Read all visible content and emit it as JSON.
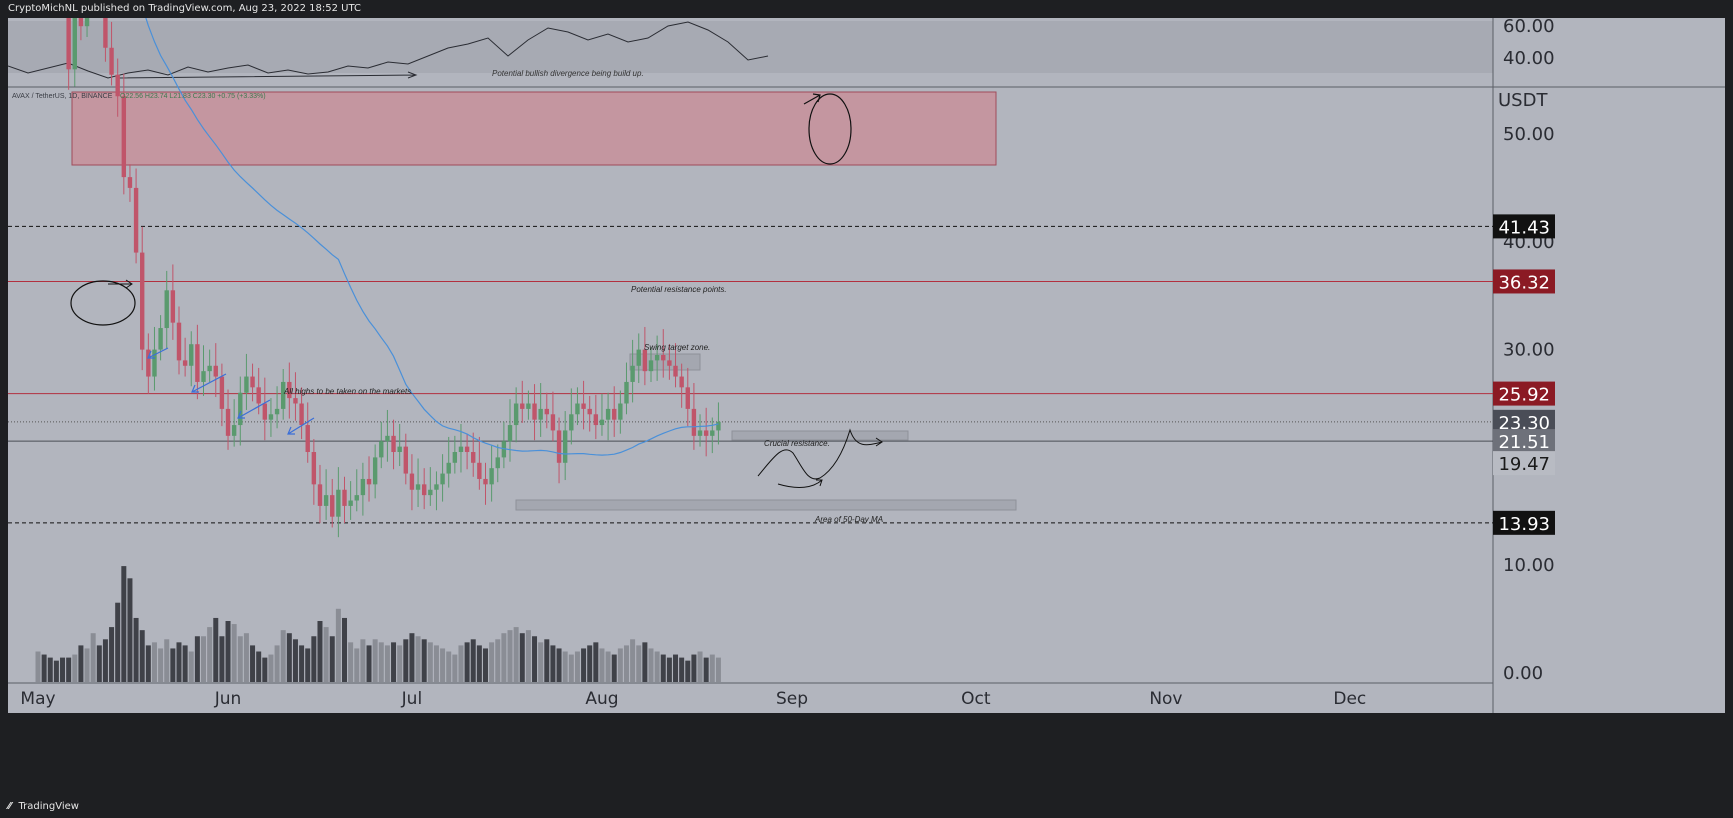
{
  "header": {
    "published_text": "CryptoMichNL published on TradingView.com, Aug 23, 2022 18:52 UTC"
  },
  "footer": {
    "brand": "TradingView",
    "logo_glyph": "⁄⁄"
  },
  "colors": {
    "background": "#b2b5be",
    "up_candle": "#5a9a6e",
    "down_candle": "#c0556a",
    "ma_line": "#4a90d9",
    "resistance_zone": "#c98c96",
    "label_black": "#111111",
    "label_red": "#8b1a24"
  },
  "chart_data": {
    "type": "candlestick",
    "symbol_legend": "AVAX / TetherUS, 1D, BINANCE",
    "ohlc_legend": "O22.56 H23.74 L21.83 C23.30 +0.75 (+3.33%)",
    "currency_label": "USDT",
    "y_ticks": [
      "0.00",
      "10.00",
      "20.00",
      "30.00",
      "40.00",
      "50.00",
      "60.00"
    ],
    "y_tick_values": [
      0,
      10,
      20,
      30,
      40,
      50,
      60
    ],
    "x_ticks": [
      "May",
      "Jun",
      "Jul",
      "Aug",
      "Sep",
      "Oct",
      "Nov",
      "Dec"
    ],
    "x_tick_days": [
      0,
      31,
      61,
      92,
      123,
      153,
      184,
      214
    ],
    "x_first_day": "May 1",
    "price_labels": [
      {
        "text": "41.43",
        "value": 41.43,
        "style": "black",
        "line": "dashed"
      },
      {
        "text": "36.32",
        "value": 36.32,
        "style": "red",
        "line": "solid-red"
      },
      {
        "text": "25.92",
        "value": 25.92,
        "style": "red",
        "line": "solid-red"
      },
      {
        "text": "23.30",
        "value": 23.3,
        "style": "dark",
        "line": "dotted"
      },
      {
        "text": "21.51",
        "value": 21.51,
        "style": "grey",
        "line": "solid-dark"
      },
      {
        "text": "19.47",
        "value": 19.47,
        "style": "light",
        "line": "none"
      },
      {
        "text": "13.93",
        "value": 13.93,
        "style": "black",
        "line": "dashed"
      }
    ],
    "rsi_tick": "40.00",
    "annotations": {
      "divergence": "Potential bullish divergence being build up.",
      "resistance_points": "Potential resistance points.",
      "swing_target": "Swing target zone.",
      "all_highs": "All highs to be taken on the markets.",
      "crucial_resistance": "Crucial resistance.",
      "ma_area": "Area of 50-Day MA"
    },
    "candles_start_day": 0,
    "close": [
      82.0,
      79.5,
      77.0,
      69.0,
      62.0,
      56.0,
      63.0,
      60.0,
      68.0,
      86.0,
      84.0,
      58.0,
      55.5,
      53.5,
      46.0,
      45.0,
      39.0,
      30.0,
      27.5,
      30.0,
      32.0,
      35.5,
      32.5,
      29.0,
      28.5,
      30.5,
      27.0,
      28.0,
      28.5,
      27.5,
      24.5,
      22.0,
      23.0,
      26.0,
      27.5,
      26.5,
      25.0,
      23.5,
      24.0,
      24.5,
      27.0,
      25.5,
      25.0,
      23.0,
      20.5,
      17.5,
      15.5,
      16.5,
      14.5,
      17.0,
      15.5,
      16.0,
      16.5,
      18.0,
      17.5,
      20.0,
      21.5,
      22.0,
      20.5,
      21.0,
      18.5,
      17.0,
      17.5,
      16.5,
      17.0,
      17.5,
      18.5,
      19.5,
      20.5,
      21.0,
      20.5,
      19.5,
      18.0,
      17.5,
      19.0,
      20.0,
      21.5,
      23.0,
      25.0,
      24.5,
      25.0,
      23.5,
      24.5,
      24.0,
      22.5,
      19.5,
      22.5,
      24.0,
      25.0,
      24.5,
      24.0,
      23.0,
      23.5,
      24.5,
      23.5,
      25.0,
      27.0,
      28.5,
      30.0,
      28.0,
      29.0,
      29.5,
      29.0,
      28.5,
      27.5,
      26.5,
      24.5,
      22.0,
      22.5,
      22.0,
      22.5,
      23.3
    ],
    "volume": [
      10,
      9,
      8,
      7,
      8,
      8,
      9,
      12,
      11,
      16,
      12,
      14,
      18,
      26,
      38,
      34,
      21,
      17,
      12,
      13,
      11,
      14,
      11,
      13,
      12,
      10,
      15,
      15,
      18,
      21,
      15,
      20,
      19,
      15,
      16,
      12,
      10,
      8,
      9,
      12,
      17,
      16,
      14,
      12,
      11,
      15,
      20,
      18,
      15,
      24,
      21,
      13,
      11,
      14,
      12,
      14,
      13,
      12,
      13,
      12,
      14,
      16,
      15,
      14,
      13,
      12,
      11,
      10,
      9,
      12,
      13,
      14,
      12,
      11,
      13,
      14,
      16,
      17,
      18,
      16,
      17,
      15,
      13,
      14,
      12,
      11,
      10,
      9,
      10,
      11,
      12,
      13,
      11,
      10,
      9,
      11,
      12,
      14,
      12,
      13,
      11,
      10,
      9,
      8,
      9,
      8,
      7,
      9,
      10,
      8,
      9,
      8
    ]
  }
}
